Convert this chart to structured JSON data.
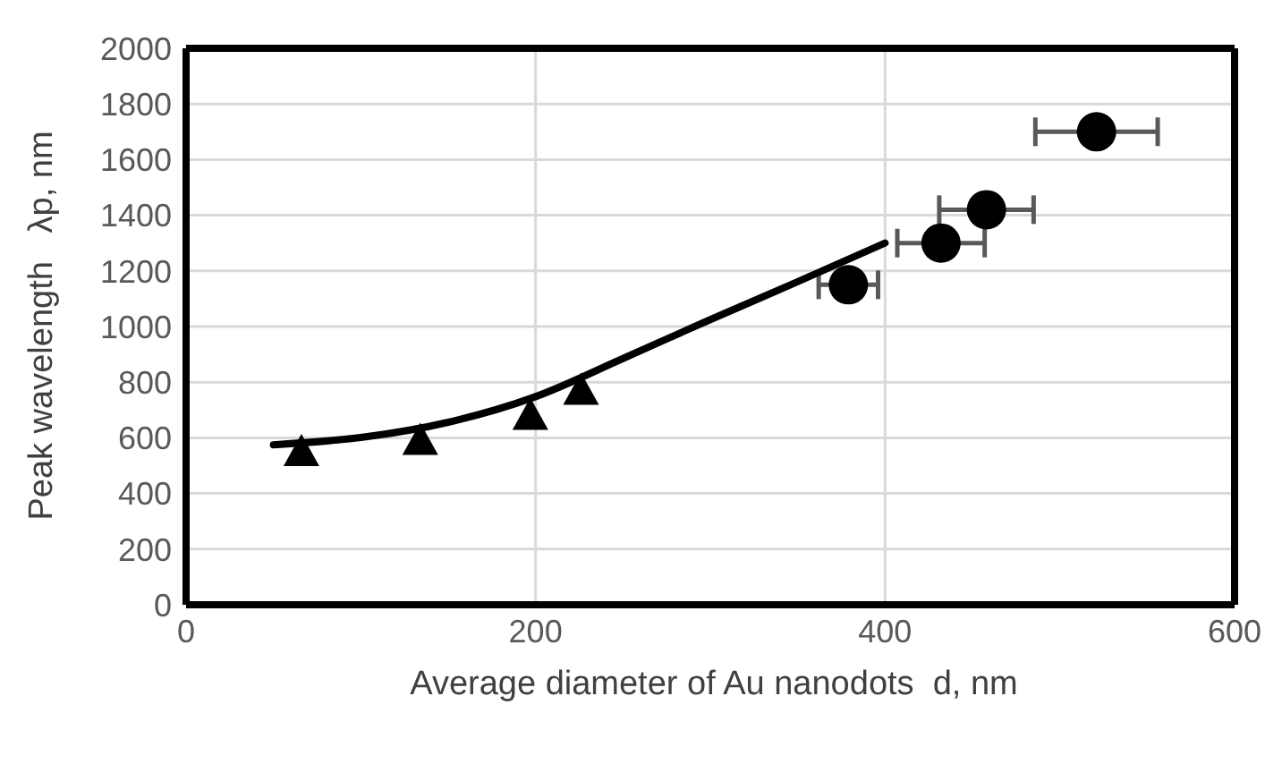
{
  "chart_data": {
    "type": "scatter",
    "xlabel": "Average diameter of Au nanodots  d, nm",
    "ylabel": "Peak wavelength   λp, nm",
    "xlim": [
      0,
      600
    ],
    "xticks": [
      0,
      200,
      400,
      600
    ],
    "ylim": [
      0,
      2000
    ],
    "yticks": [
      0,
      200,
      400,
      600,
      800,
      1000,
      1200,
      1400,
      1600,
      1800,
      2000
    ],
    "grid": true,
    "series": [
      {
        "type": "scatter",
        "color": "#000000",
        "marker": "triangle",
        "x": [
          66,
          134,
          197,
          226
        ],
        "values": [
          550,
          590,
          680,
          770
        ]
      },
      {
        "type": "scatter",
        "color": "#000000",
        "marker": "circle",
        "x": [
          379,
          432,
          458,
          521
        ],
        "values": [
          1150,
          1300,
          1420,
          1700
        ],
        "xerrors": [
          17,
          25,
          27,
          35
        ]
      },
      {
        "type": "line",
        "color": "#000000",
        "marker": "none",
        "line_style": "solid",
        "x": [
          50,
          100,
          150,
          200,
          250,
          300,
          350,
          400
        ],
        "values": [
          575,
          601,
          656,
          748,
          885,
          1025,
          1161,
          1300
        ]
      }
    ]
  }
}
